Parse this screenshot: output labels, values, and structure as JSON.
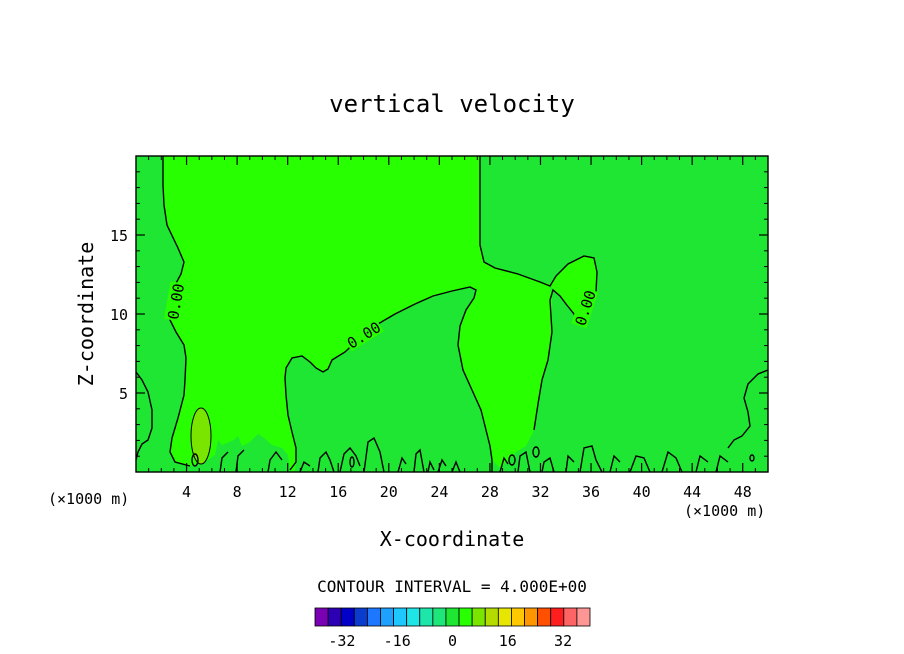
{
  "chart_data": {
    "type": "heatmap",
    "title": "vertical velocity",
    "xlabel": "X-coordinate",
    "ylabel": "Z-coordinate",
    "x_unit_left": "(×1000 m)",
    "x_unit_right": "(×1000 m)",
    "xlim": [
      0,
      50
    ],
    "ylim": [
      0,
      20
    ],
    "xticks": [
      4,
      8,
      12,
      16,
      20,
      24,
      28,
      32,
      36,
      40,
      44,
      48
    ],
    "yticks": [
      5,
      10,
      15
    ],
    "contour_labels": [
      {
        "text": "0.00",
        "x": 3.1,
        "y": 10.8,
        "angle": -80
      },
      {
        "text": "0.00",
        "x": 18.0,
        "y": 8.7,
        "angle": -32
      },
      {
        "text": "0.00",
        "x": 35.5,
        "y": 10.4,
        "angle": -72
      }
    ],
    "contour_interval_text": "CONTOUR INTERVAL = 4.000E+00",
    "colorbar": {
      "levels": [
        -36,
        -32,
        -28,
        -24,
        -20,
        -16,
        -12,
        -8,
        -4,
        0,
        4,
        8,
        12,
        16,
        20,
        24,
        28,
        32,
        36
      ],
      "tick_labels": [
        "-32",
        "-16",
        "0",
        "16",
        "32"
      ],
      "tick_values": [
        -32,
        -16,
        0,
        16,
        32
      ],
      "colors": [
        "#7a00b4",
        "#2d00b4",
        "#0000c8",
        "#0a3ccd",
        "#1e78ff",
        "#1ea0ff",
        "#1ec8ff",
        "#1ee6e6",
        "#1ee6aa",
        "#1ee678",
        "#1ee632",
        "#28ff00",
        "#7ae600",
        "#b4dc00",
        "#e6e600",
        "#ffc800",
        "#ff9600",
        "#ff5000",
        "#ff1e1e",
        "#ff6464",
        "#ff9696"
      ]
    },
    "fill_colors": {
      "negative_band": "#1ee632",
      "positive_band": "#28ff00",
      "updraft_core": "#7ae600"
    }
  }
}
